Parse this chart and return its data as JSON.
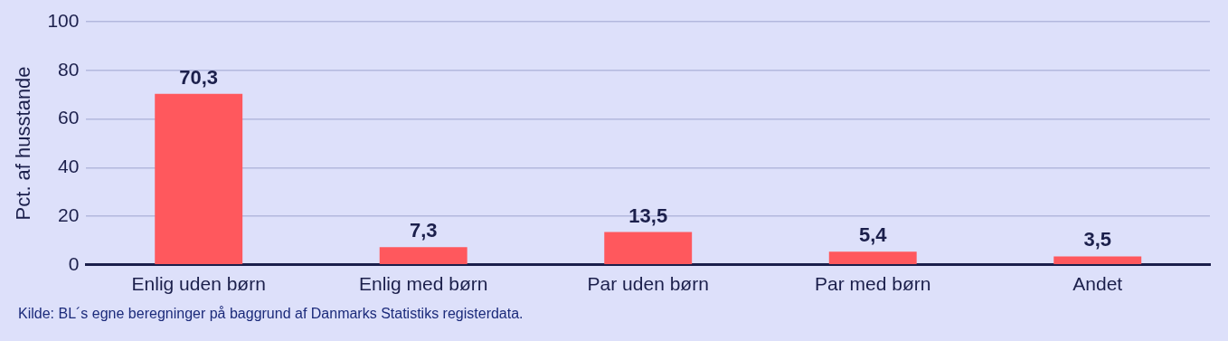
{
  "chart_data": {
    "type": "bar",
    "categories": [
      "Enlig uden børn",
      "Enlig med børn",
      "Par uden børn",
      "Par med børn",
      "Andet"
    ],
    "values": [
      70.3,
      7.3,
      13.5,
      5.4,
      3.5
    ],
    "color": "#ff585d",
    "ylabel": "Pct. af husstande",
    "ylim": [
      0,
      100
    ],
    "yticks": [
      0,
      20,
      40,
      60,
      80,
      100
    ],
    "grid": "y",
    "legend": false,
    "data_labels": true,
    "value_labels": [
      "70,3",
      "7,3",
      "13,5",
      "5,4",
      "3,5"
    ],
    "annotations": [
      "Kilde: BL´s egne beregninger på baggrund af Danmarks Statistiks registerdata."
    ]
  }
}
